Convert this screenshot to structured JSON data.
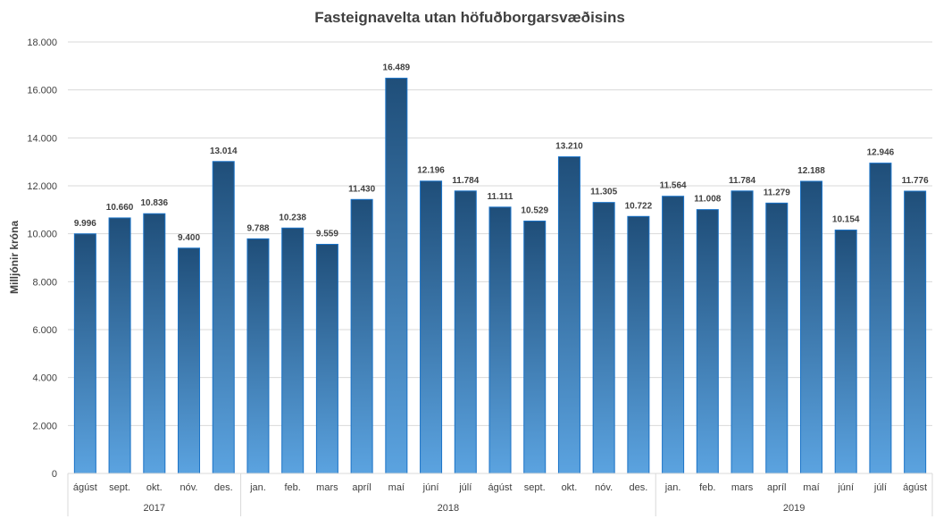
{
  "colors": {
    "bar_top": "#1f4e79",
    "bar_bottom": "#5ba3e0",
    "bar_stroke": "#1a73c8",
    "grid": "#d9d9d9",
    "text": "#404040"
  },
  "chart_data": {
    "type": "bar",
    "title": "Fasteignavelta utan höfuðborgarsvæðisins",
    "xlabel": "",
    "ylabel": "Milljónir króna",
    "ylim": [
      0,
      18000
    ],
    "yticks": [
      0,
      2000,
      4000,
      6000,
      8000,
      10000,
      12000,
      14000,
      16000,
      18000
    ],
    "ytick_labels": [
      "0",
      "2.000",
      "4.000",
      "6.000",
      "8.000",
      "10.000",
      "12.000",
      "14.000",
      "16.000",
      "18.000"
    ],
    "grid": true,
    "legend": "none",
    "categories": [
      "ágúst",
      "sept.",
      "okt.",
      "nóv.",
      "des.",
      "jan.",
      "feb.",
      "mars",
      "apríl",
      "maí",
      "júní",
      "júlí",
      "ágúst",
      "sept.",
      "okt.",
      "nóv.",
      "des.",
      "jan.",
      "feb.",
      "mars",
      "apríl",
      "maí",
      "júní",
      "júlí",
      "ágúst"
    ],
    "values": [
      9996,
      10660,
      10836,
      9400,
      13014,
      9788,
      10238,
      9559,
      11430,
      16489,
      12196,
      11784,
      11111,
      10529,
      13210,
      11305,
      10722,
      11564,
      11008,
      11784,
      11279,
      12188,
      10154,
      12946,
      11776
    ],
    "data_labels": [
      "9.996",
      "10.660",
      "10.836",
      "9.400",
      "13.014",
      "9.788",
      "10.238",
      "9.559",
      "11.430",
      "16.489",
      "12.196",
      "11.784",
      "11.111",
      "10.529",
      "13.210",
      "11.305",
      "10.722",
      "11.564",
      "11.008",
      "11.784",
      "11.279",
      "12.188",
      "10.154",
      "12.946",
      "11.776"
    ],
    "groups": [
      {
        "label": "2017",
        "count": 5
      },
      {
        "label": "2018",
        "count": 12
      },
      {
        "label": "2019",
        "count": 8
      }
    ]
  }
}
